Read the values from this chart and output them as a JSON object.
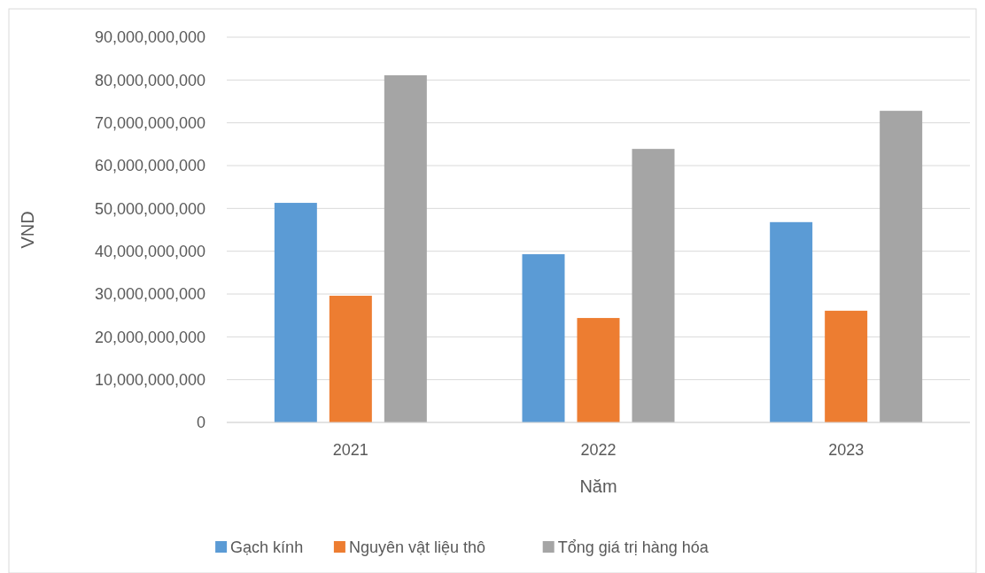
{
  "chart_data": {
    "type": "bar",
    "xlabel": "Năm",
    "ylabel": "VND",
    "categories": [
      "2021",
      "2022",
      "2023"
    ],
    "series": [
      {
        "name": "Gạch kính",
        "color": "#5b9bd5",
        "values": [
          51300000000,
          39300000000,
          46800000000
        ]
      },
      {
        "name": "Nguyên vật liệu thô",
        "color": "#ed7d31",
        "values": [
          29600000000,
          24400000000,
          26100000000
        ]
      },
      {
        "name": "Tổng giá trị hàng hóa",
        "color": "#a5a5a5",
        "values": [
          81100000000,
          63900000000,
          72800000000
        ]
      }
    ],
    "ylim": [
      0,
      90000000000
    ],
    "yticks": [
      {
        "value": 0,
        "label": "0"
      },
      {
        "value": 10000000000,
        "label": "10,000,000,000"
      },
      {
        "value": 20000000000,
        "label": "20,000,000,000"
      },
      {
        "value": 30000000000,
        "label": "30,000,000,000"
      },
      {
        "value": 40000000000,
        "label": "40,000,000,000"
      },
      {
        "value": 50000000000,
        "label": "50,000,000,000"
      },
      {
        "value": 60000000000,
        "label": "60,000,000,000"
      },
      {
        "value": 70000000000,
        "label": "70,000,000,000"
      },
      {
        "value": 80000000000,
        "label": "80,000,000,000"
      },
      {
        "value": 90000000000,
        "label": "90,000,000,000"
      }
    ],
    "grid": "y",
    "legend": "bottom"
  }
}
